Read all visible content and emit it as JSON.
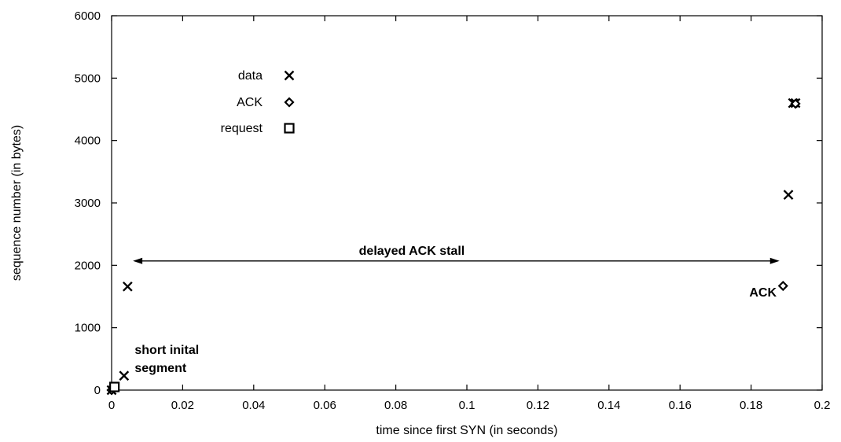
{
  "chart_data": {
    "type": "scatter",
    "title": "",
    "xlabel": "time since first SYN (in seconds)",
    "ylabel": "sequence number (in bytes)",
    "xlim": [
      0,
      0.2
    ],
    "ylim": [
      0,
      6000
    ],
    "x_ticks": [
      "0",
      "0.02",
      "0.04",
      "0.06",
      "0.08",
      "0.1",
      "0.12",
      "0.14",
      "0.16",
      "0.18",
      "0.2"
    ],
    "x_tick_values": [
      0,
      0.02,
      0.04,
      0.06,
      0.08,
      0.1,
      0.12,
      0.14,
      0.16,
      0.18,
      0.2
    ],
    "y_ticks": [
      "0",
      "1000",
      "2000",
      "3000",
      "4000",
      "5000",
      "6000"
    ],
    "y_tick_values": [
      0,
      1000,
      2000,
      3000,
      4000,
      5000,
      6000
    ],
    "grid": false,
    "legend_position": "top-left",
    "series": [
      {
        "name": "data",
        "marker": "x-icon",
        "points": [
          {
            "x": 0.0,
            "y": 0
          },
          {
            "x": 0.0035,
            "y": 230
          },
          {
            "x": 0.0045,
            "y": 1660
          },
          {
            "x": 0.1905,
            "y": 3130
          },
          {
            "x": 0.1918,
            "y": 4600
          },
          {
            "x": 0.1925,
            "y": 4600
          }
        ]
      },
      {
        "name": "ACK",
        "marker": "diamond-icon",
        "points": [
          {
            "x": 0.0,
            "y": 0
          },
          {
            "x": 0.189,
            "y": 1670
          },
          {
            "x": 0.1925,
            "y": 4590
          }
        ]
      },
      {
        "name": "request",
        "marker": "square-icon",
        "points": [
          {
            "x": 0.0008,
            "y": 50
          }
        ]
      }
    ],
    "annotations": [
      {
        "text": "short inital",
        "x": 0.0065,
        "y": 580
      },
      {
        "text": "segment",
        "x": 0.0065,
        "y": 290
      },
      {
        "text": "delayed ACK stall",
        "x": 0.0845,
        "y": 2170
      },
      {
        "text": "ACK",
        "x": 0.1795,
        "y": 1500
      }
    ],
    "stall_arrow": {
      "x_start": 0.006,
      "x_end": 0.188,
      "y": 2070
    }
  }
}
